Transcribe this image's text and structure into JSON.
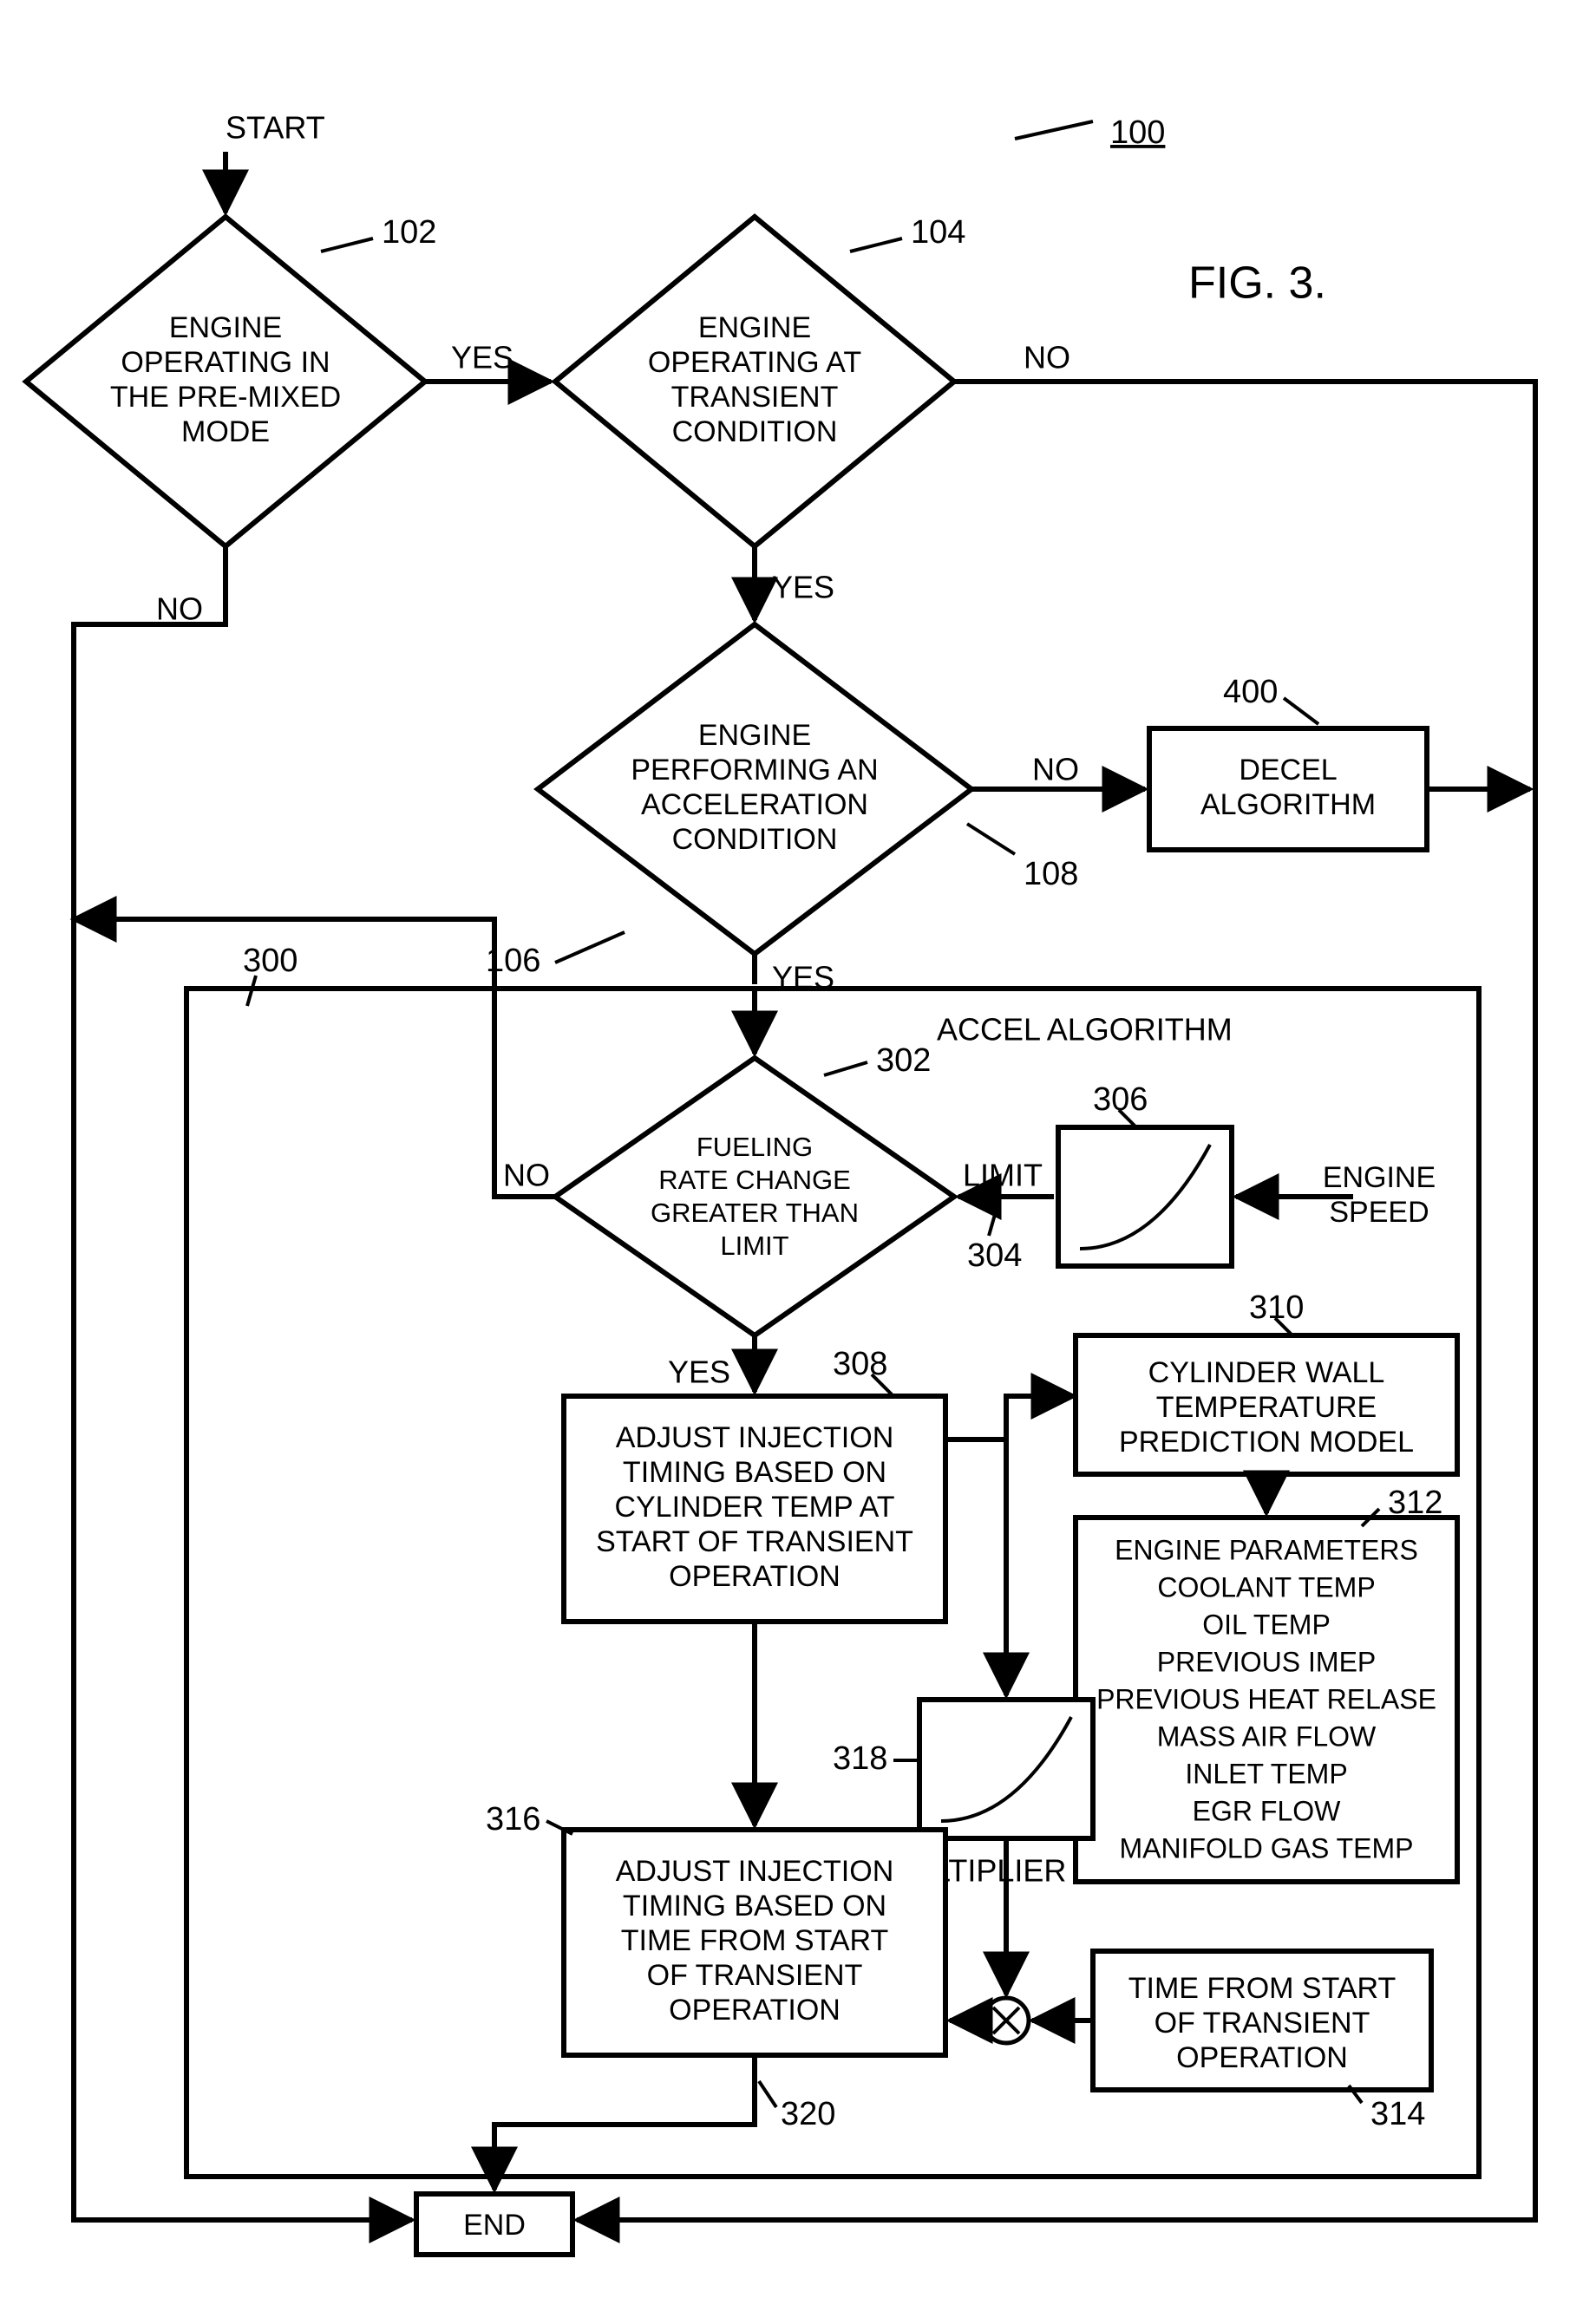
{
  "figure_title": "FIG. 3.",
  "figure_ref": "100",
  "start_label": "START",
  "end_label": "END",
  "yes": "YES",
  "no": "NO",
  "limit": "LIMIT",
  "engine_speed": "ENGINE SPEED",
  "multiplier": "MULTIPLIER",
  "accel_title": "ACCEL ALGORITHM",
  "decel_title": "DECEL ALGORITHM",
  "d102": {
    "ref": "102",
    "l1": "ENGINE",
    "l2": "OPERATING IN",
    "l3": "THE PRE-MIXED",
    "l4": "MODE"
  },
  "d104": {
    "ref": "104",
    "l1": "ENGINE",
    "l2": "OPERATING AT",
    "l3": "TRANSIENT",
    "l4": "CONDITION"
  },
  "d106": {
    "ref": "106",
    "l1": "ENGINE",
    "l2": "PERFORMING AN",
    "l3": "ACCELERATION",
    "l4": "CONDITION"
  },
  "d302": {
    "ref": "302",
    "l1": "FUELING",
    "l2": "RATE CHANGE",
    "l3": "GREATER THAN",
    "l4": "LIMIT"
  },
  "b400": {
    "ref": "400"
  },
  "b306": {
    "ref": "306"
  },
  "b308": {
    "ref": "308",
    "l1": "ADJUST INJECTION",
    "l2": "TIMING BASED ON",
    "l3": "CYLINDER TEMP AT",
    "l4": "START OF TRANSIENT",
    "l5": "OPERATION"
  },
  "b310": {
    "ref": "310",
    "l1": "CYLINDER WALL",
    "l2": "TEMPERATURE",
    "l3": "PREDICTION MODEL"
  },
  "b312": {
    "ref": "312",
    "l1": "ENGINE PARAMETERS",
    "l2": "COOLANT TEMP",
    "l3": "OIL TEMP",
    "l4": "PREVIOUS IMEP",
    "l5": "PREVIOUS HEAT RELASE",
    "l6": "MASS AIR FLOW",
    "l7": "INLET TEMP",
    "l8": "EGR FLOW",
    "l9": "MANIFOLD GAS TEMP"
  },
  "b314": {
    "ref": "314",
    "l1": "TIME FROM START",
    "l2": "OF TRANSIENT",
    "l3": "OPERATION"
  },
  "b316": {
    "ref": "316",
    "l1": "ADJUST INJECTION",
    "l2": "TIMING BASED ON",
    "l3": "TIME FROM START",
    "l4": "OF TRANSIENT",
    "l5": "OPERATION"
  },
  "b318": {
    "ref": "318"
  },
  "b320": {
    "ref": "320"
  },
  "ref300": "300",
  "ref304": "304",
  "ref108": "108",
  "style": {
    "stroke": "#000000",
    "stroke_thin": 4,
    "stroke_thick": 6,
    "bg": "#ffffff"
  }
}
